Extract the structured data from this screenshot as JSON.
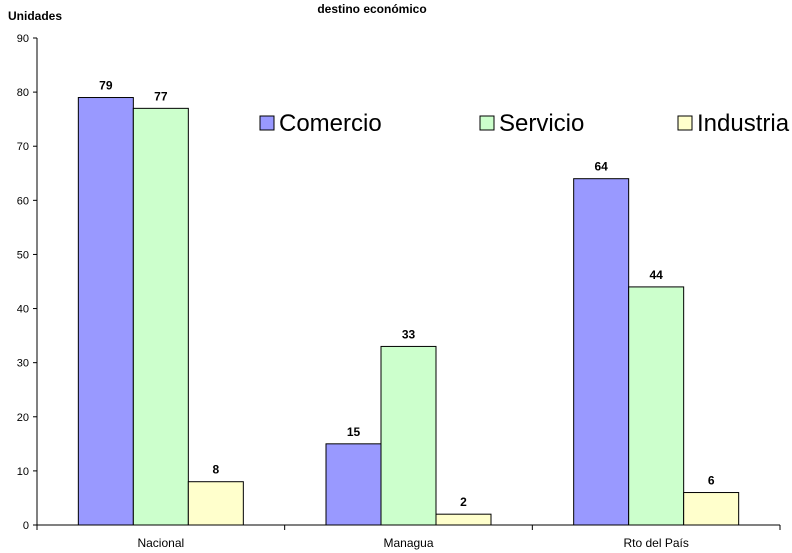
{
  "chart_data": {
    "type": "bar",
    "title": "destino económico",
    "xlabel": "",
    "ylabel": "Unidades",
    "ylim": [
      0,
      90
    ],
    "ytick_step": 10,
    "grid": false,
    "legend_position": "top-right",
    "categories": [
      "Nacional",
      "Managua",
      "Rto del País"
    ],
    "series": [
      {
        "name": "Comercio",
        "color": "#9999ff",
        "values": [
          79,
          15,
          64
        ]
      },
      {
        "name": "Servicio",
        "color": "#ccffcc",
        "values": [
          77,
          33,
          44
        ]
      },
      {
        "name": "Industria",
        "color": "#ffffcc",
        "values": [
          8,
          2,
          6
        ]
      }
    ]
  }
}
